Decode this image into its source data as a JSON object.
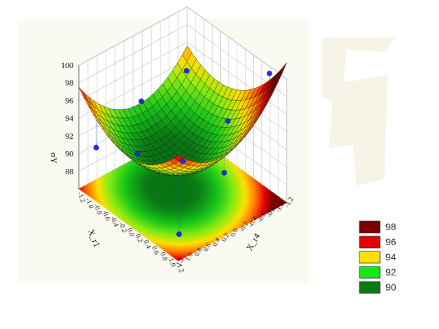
{
  "chart_data": {
    "type": "surface3d",
    "title": "",
    "zlabel": "σY",
    "xlabel": "X_r1",
    "ylabel": "X_r4",
    "zlim": [
      86,
      100
    ],
    "z_ticks": [
      "100",
      "98",
      "96",
      "94",
      "92",
      "90",
      "88"
    ],
    "x_ticks": [
      "-1.2",
      "-1.0",
      "-0.8",
      "-0.6",
      "-0.4",
      "-0.2",
      "0.0",
      "0.2",
      "0.4",
      "0.6",
      "0.8",
      "1.0",
      "1.2"
    ],
    "y_ticks": [
      "1.2",
      "1.0",
      "0.8",
      "0.6",
      "0.4",
      "0.2",
      "0.0",
      "-0.2",
      "-0.4",
      "-0.6",
      "-0.8",
      "-1.0",
      "-1.2"
    ],
    "grid": true,
    "legend_position": "bottom-right",
    "legend": [
      {
        "label": "98",
        "color": "#7a0000"
      },
      {
        "label": "96",
        "color": "#e60000"
      },
      {
        "label": "94",
        "color": "#ffe100"
      },
      {
        "label": "92",
        "color": "#19e619"
      },
      {
        "label": "90",
        "color": "#0a7a14"
      }
    ],
    "surface_model": {
      "form": "quadratic",
      "b0": 89.6,
      "b1": 1.4,
      "b2": -0.4,
      "b11": 2.8,
      "b22": 3.2,
      "b12": -1.0
    },
    "observed_points": [
      {
        "x": -1,
        "y": -1,
        "z": 94.0
      },
      {
        "x": -1,
        "y": 0,
        "z": 93.3
      },
      {
        "x": -1,
        "y": 1,
        "z": 90.8
      },
      {
        "x": 0,
        "y": -1,
        "z": 91.7
      },
      {
        "x": 0,
        "y": 0,
        "z": 89.9
      },
      {
        "x": 0,
        "y": 1,
        "z": 93.5
      },
      {
        "x": 1,
        "y": -1,
        "z": 100.5
      },
      {
        "x": 1,
        "y": 0,
        "z": 92.0
      },
      {
        "x": 1,
        "y": 1,
        "z": 87.8
      }
    ]
  }
}
